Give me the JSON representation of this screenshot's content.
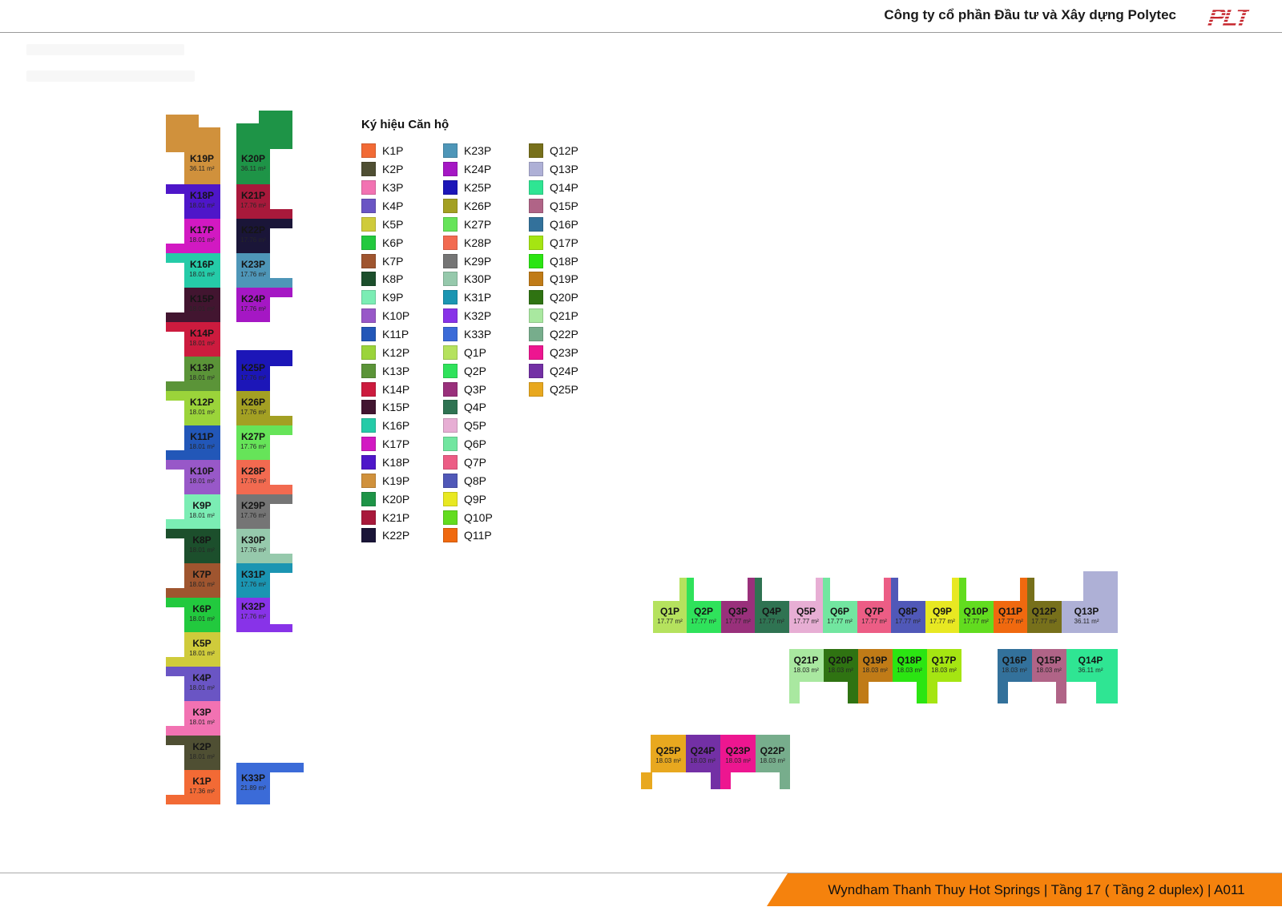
{
  "header": {
    "company_title": "Công ty cổ phần Đầu tư và Xây dựng Polytec",
    "logo_text": "PLT"
  },
  "legend": {
    "title": "Ký hiệu Căn hộ"
  },
  "footer": {
    "title": "Wyndham Thanh Thuy Hot Springs | Tầng 17 ( Tầng 2 duplex) | A011",
    "banner_color": "#F5820D"
  },
  "units": [
    {
      "id": "K1P",
      "label": "K1P",
      "area": "17.36 m²",
      "color": "#F26A35"
    },
    {
      "id": "K2P",
      "label": "K2P",
      "area": "18.01 m²",
      "color": "#4F4F33"
    },
    {
      "id": "K3P",
      "label": "K3P",
      "area": "18.01 m²",
      "color": "#F272B2"
    },
    {
      "id": "K4P",
      "label": "K4P",
      "area": "18.01 m²",
      "color": "#6A55C4"
    },
    {
      "id": "K5P",
      "label": "K5P",
      "area": "18.01 m²",
      "color": "#CFCB3B"
    },
    {
      "id": "K6P",
      "label": "K6P",
      "area": "18.01 m²",
      "color": "#22C93E"
    },
    {
      "id": "K7P",
      "label": "K7P",
      "area": "18.01 m²",
      "color": "#9F552F"
    },
    {
      "id": "K8P",
      "label": "K8P",
      "area": "18.01 m²",
      "color": "#1C4F2C"
    },
    {
      "id": "K9P",
      "label": "K9P",
      "area": "18.01 m²",
      "color": "#7BEDB4"
    },
    {
      "id": "K10P",
      "label": "K10P",
      "area": "18.01 m²",
      "color": "#9858C8"
    },
    {
      "id": "K11P",
      "label": "K11P",
      "area": "18.01 m²",
      "color": "#2257B8"
    },
    {
      "id": "K12P",
      "label": "K12P",
      "area": "18.01 m²",
      "color": "#9BD43A"
    },
    {
      "id": "K13P",
      "label": "K13P",
      "area": "18.01 m²",
      "color": "#5B9438"
    },
    {
      "id": "K14P",
      "label": "K14P",
      "area": "18.01 m²",
      "color": "#CC1B3E"
    },
    {
      "id": "K15P",
      "label": "K15P",
      "area": "18.01 m²",
      "color": "#421530"
    },
    {
      "id": "K16P",
      "label": "K16P",
      "area": "18.01 m²",
      "color": "#25CBA8"
    },
    {
      "id": "K17P",
      "label": "K17P",
      "area": "18.01 m²",
      "color": "#D219C2"
    },
    {
      "id": "K18P",
      "label": "K18P",
      "area": "18.01 m²",
      "color": "#4E16C9"
    },
    {
      "id": "K19P",
      "label": "K19P",
      "area": "36.11 m²",
      "color": "#D0913C"
    },
    {
      "id": "K20P",
      "label": "K20P",
      "area": "36.11 m²",
      "color": "#1E9447"
    },
    {
      "id": "K21P",
      "label": "K21P",
      "area": "17.76 m²",
      "color": "#A8193B"
    },
    {
      "id": "K22P",
      "label": "K22P",
      "area": "17.76 m²",
      "color": "#1A1538"
    },
    {
      "id": "K23P",
      "label": "K23P",
      "area": "17.76 m²",
      "color": "#4E96B8"
    },
    {
      "id": "K24P",
      "label": "K24P",
      "area": "17.76 m²",
      "color": "#A517C4"
    },
    {
      "id": "K25P",
      "label": "K25P",
      "area": "17.76 m²",
      "color": "#1C16B8"
    },
    {
      "id": "K26P",
      "label": "K26P",
      "area": "17.76 m²",
      "color": "#A3A023"
    },
    {
      "id": "K27P",
      "label": "K27P",
      "area": "17.76 m²",
      "color": "#66E459"
    },
    {
      "id": "K28P",
      "label": "K28P",
      "area": "17.76 m²",
      "color": "#F26A50"
    },
    {
      "id": "K29P",
      "label": "K29P",
      "area": "17.76 m²",
      "color": "#757575"
    },
    {
      "id": "K30P",
      "label": "K30P",
      "area": "17.76 m²",
      "color": "#96C9AC"
    },
    {
      "id": "K31P",
      "label": "K31P",
      "area": "17.76 m²",
      "color": "#1B95B2"
    },
    {
      "id": "K32P",
      "label": "K32P",
      "area": "17.76 m²",
      "color": "#8833E8"
    },
    {
      "id": "K33P",
      "label": "K33P",
      "area": "21.89 m²",
      "color": "#3B6BD8"
    },
    {
      "id": "Q1P",
      "label": "Q1P",
      "area": "17.77 m²",
      "color": "#B5E25E"
    },
    {
      "id": "Q2P",
      "label": "Q2P",
      "area": "17.77 m²",
      "color": "#2FE25B"
    },
    {
      "id": "Q3P",
      "label": "Q3P",
      "area": "17.77 m²",
      "color": "#99307B"
    },
    {
      "id": "Q4P",
      "label": "Q4P",
      "area": "17.77 m²",
      "color": "#2F7352"
    },
    {
      "id": "Q5P",
      "label": "Q5P",
      "area": "17.77 m²",
      "color": "#E7AED4"
    },
    {
      "id": "Q6P",
      "label": "Q6P",
      "area": "17.77 m²",
      "color": "#72E6A0"
    },
    {
      "id": "Q7P",
      "label": "Q7P",
      "area": "17.77 m²",
      "color": "#EC5D85"
    },
    {
      "id": "Q8P",
      "label": "Q8P",
      "area": "17.77 m²",
      "color": "#5058B8"
    },
    {
      "id": "Q9P",
      "label": "Q9P",
      "area": "17.77 m²",
      "color": "#E8E822"
    },
    {
      "id": "Q10P",
      "label": "Q10P",
      "area": "17.77 m²",
      "color": "#62DC1F"
    },
    {
      "id": "Q11P",
      "label": "Q11P",
      "area": "17.77 m²",
      "color": "#F0690F"
    },
    {
      "id": "Q12P",
      "label": "Q12P",
      "area": "17.77 m²",
      "color": "#77701B"
    },
    {
      "id": "Q13P",
      "label": "Q13P",
      "area": "36.11 m²",
      "color": "#AEB0D6"
    },
    {
      "id": "Q14P",
      "label": "Q14P",
      "area": "36.11 m²",
      "color": "#2FE593"
    },
    {
      "id": "Q15P",
      "label": "Q15P",
      "area": "18.03 m²",
      "color": "#B06487"
    },
    {
      "id": "Q16P",
      "label": "Q16P",
      "area": "18.03 m²",
      "color": "#33719B"
    },
    {
      "id": "Q17P",
      "label": "Q17P",
      "area": "18.03 m²",
      "color": "#A5E512"
    },
    {
      "id": "Q18P",
      "label": "Q18P",
      "area": "18.03 m²",
      "color": "#2BE512"
    },
    {
      "id": "Q19P",
      "label": "Q19P",
      "area": "18.03 m²",
      "color": "#C07B17"
    },
    {
      "id": "Q20P",
      "label": "Q20P",
      "area": "18.03 m²",
      "color": "#2F7312"
    },
    {
      "id": "Q21P",
      "label": "Q21P",
      "area": "18.03 m²",
      "color": "#A9E8A0"
    },
    {
      "id": "Q22P",
      "label": "Q22P",
      "area": "18.03 m²",
      "color": "#77AD8C"
    },
    {
      "id": "Q23P",
      "label": "Q23P",
      "area": "18.03 m²",
      "color": "#ED1690"
    },
    {
      "id": "Q24P",
      "label": "Q24P",
      "area": "18.03 m²",
      "color": "#7330A5"
    },
    {
      "id": "Q25P",
      "label": "Q25P",
      "area": "18.03 m²",
      "color": "#E8A81F"
    }
  ]
}
